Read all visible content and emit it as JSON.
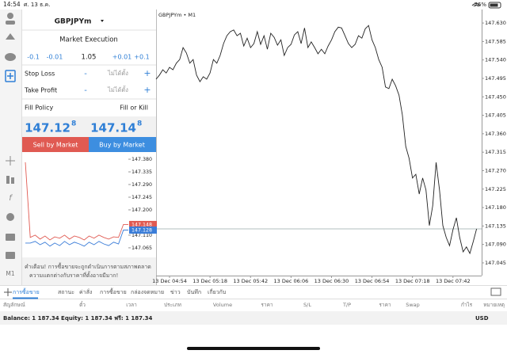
{
  "status_bar": {
    "time": "14:54",
    "date": "ศ. 13 ธ.ค.",
    "battery": "76%"
  },
  "toolbar": {
    "timeframe": "M1"
  },
  "order_panel": {
    "symbol": "GBPJPYm",
    "execution": "Market Execution",
    "volume_steps": [
      "-0.1",
      "-0.01",
      "1.05",
      "+0.01",
      "+0.1"
    ],
    "stop_loss": {
      "label": "Stop Loss",
      "minus": "-",
      "value": "ไม่ได้ตั้ง",
      "plus": "+"
    },
    "take_profit": {
      "label": "Take Profit",
      "minus": "-",
      "value": "ไม่ได้ตั้ง",
      "plus": "+"
    },
    "fill_policy": {
      "label": "Fill Policy",
      "value": "Fill or Kill"
    },
    "sell_price": {
      "main": "147.12",
      "digit": "8"
    },
    "buy_price": {
      "main": "147.14",
      "digit": "8"
    },
    "sell_button": "Sell by Market",
    "buy_button": "Buy by Market",
    "warning": [
      "คำเตือน! การซื้อขายจะถูกดำเนินการตามสภาพตลาด",
      "ความแตกต่างกับราคาที่ตั้งอาจมีมาก!"
    ]
  },
  "chart_data": [
    {
      "type": "line",
      "title": "GBPJPYm • M1",
      "x": [
        0,
        2,
        4,
        6,
        8,
        10,
        12,
        14,
        16,
        18,
        20,
        22,
        24,
        26,
        28,
        30,
        32,
        34,
        36,
        38,
        40,
        42,
        44,
        46,
        48,
        50,
        52,
        54,
        56,
        58,
        60,
        62,
        64,
        66,
        68,
        70,
        72,
        74,
        76,
        78,
        80,
        82,
        84,
        86,
        88,
        90,
        92,
        94,
        96,
        98,
        100,
        102,
        104,
        106,
        108,
        110,
        112,
        114,
        116,
        118,
        120,
        122,
        124,
        126,
        128,
        130,
        132,
        134,
        136,
        138,
        140,
        142,
        144,
        146,
        148,
        150,
        152,
        154,
        156,
        158,
        160,
        162,
        164,
        166,
        168,
        170,
        172,
        174,
        176,
        178,
        180,
        182,
        184,
        186,
        188,
        190
      ],
      "series": [
        {
          "color": "#222222",
          "values": [
            147.493,
            147.503,
            147.516,
            147.508,
            147.522,
            147.516,
            147.532,
            147.541,
            147.57,
            147.557,
            147.532,
            147.541,
            147.503,
            147.487,
            147.499,
            147.493,
            147.508,
            147.541,
            147.532,
            147.551,
            147.58,
            147.599,
            147.609,
            147.613,
            147.599,
            147.605,
            147.574,
            147.593,
            147.57,
            147.58,
            147.609,
            147.578,
            147.599,
            147.566,
            147.605,
            147.595,
            147.576,
            147.589,
            147.551,
            147.57,
            147.578,
            147.601,
            147.609,
            147.58,
            147.618,
            147.57,
            147.584,
            147.57,
            147.555,
            147.566,
            147.555,
            147.574,
            147.589,
            147.609,
            147.62,
            147.618,
            147.599,
            147.58,
            147.57,
            147.578,
            147.599,
            147.593,
            147.616,
            147.624,
            147.589,
            147.57,
            147.541,
            147.522,
            147.474,
            147.47,
            147.493,
            147.477,
            147.454,
            147.406,
            147.329,
            147.3,
            147.252,
            147.261,
            147.213,
            147.252,
            147.223,
            147.136,
            147.184,
            147.29,
            147.223,
            147.136,
            147.107,
            147.087,
            147.126,
            147.155,
            147.107,
            147.072,
            147.084,
            147.068,
            147.097,
            147.128
          ]
        }
      ],
      "price_line": 147.128,
      "xlim": [
        0,
        193
      ],
      "xticks": [
        {
          "value": 8,
          "label": "13 Dec 04:54"
        },
        {
          "value": 32,
          "label": "13 Dec 05:18"
        },
        {
          "value": 56,
          "label": "13 Dec 05:42"
        },
        {
          "value": 80,
          "label": "13 Dec 06:06"
        },
        {
          "value": 104,
          "label": "13 Dec 06:30"
        },
        {
          "value": 128,
          "label": "13 Dec 06:54"
        },
        {
          "value": 152,
          "label": "13 Dec 07:18"
        },
        {
          "value": 176,
          "label": "13 Dec 07:42"
        }
      ],
      "ylim": [
        147.014,
        147.663
      ],
      "yticks": [
        {
          "value": 147.63,
          "label": "147.630"
        },
        147.585,
        {
          "value": 147.54,
          "label": "147.540"
        },
        147.495,
        {
          "value": 147.45,
          "label": "147.450"
        },
        147.405,
        {
          "value": 147.36,
          "label": "147.360"
        },
        147.315,
        {
          "value": 147.27,
          "label": "147.270"
        },
        147.225,
        {
          "value": 147.18,
          "label": "147.180"
        },
        147.135,
        {
          "value": 147.09,
          "label": "147.090"
        },
        147.045
      ]
    },
    {
      "type": "line",
      "series": [
        {
          "color": "#e05a52",
          "values": [
            147.369,
            147.102,
            147.11,
            147.096,
            147.107,
            147.093,
            147.104,
            147.099,
            147.11,
            147.096,
            147.107,
            147.102,
            147.093,
            147.107,
            147.099,
            147.11,
            147.102,
            147.096,
            147.104,
            147.102,
            147.148,
            147.148
          ]
        },
        {
          "color": "#3b7dd8",
          "values": [
            147.082,
            147.082,
            147.088,
            147.076,
            147.085,
            147.071,
            147.082,
            147.073,
            147.088,
            147.076,
            147.085,
            147.079,
            147.071,
            147.085,
            147.076,
            147.088,
            147.079,
            147.073,
            147.085,
            147.079,
            147.128,
            147.128
          ]
        }
      ],
      "price_labels": [
        {
          "value": 147.148,
          "color": "#e05a52"
        },
        {
          "value": 147.128,
          "color": "#3b7dd8"
        }
      ],
      "ylim": [
        147.031,
        147.397
      ],
      "yticks": [
        {
          "value": 147.38,
          "label": "147.380"
        },
        147.335,
        {
          "value": 147.29,
          "label": "147.290"
        },
        147.245,
        {
          "value": 147.2,
          "label": "147.200"
        },
        {
          "value": 147.11,
          "label": "147.110"
        },
        147.065
      ]
    }
  ],
  "tabs": [
    "การซื้อขาย",
    "สถานะ",
    "ค่าสั่ง",
    "การซื้อขาย",
    "กล่องจดหมาย",
    "ข่าว",
    "บันทึก",
    "เกี่ยวกับ"
  ],
  "table": {
    "columns": [
      "สัญลักษณ์",
      "ตั๋ว",
      "เวลา",
      "ประเภท",
      "Volume",
      "ราคา",
      "S/L",
      "T/P",
      "ราคา",
      "Swap",
      "กำไร",
      "หมายเหตุ"
    ],
    "balance": "Balance: 1 187.34 Equity: 1 187.34 ฟรี: 1 187.34",
    "currency": "USD"
  }
}
